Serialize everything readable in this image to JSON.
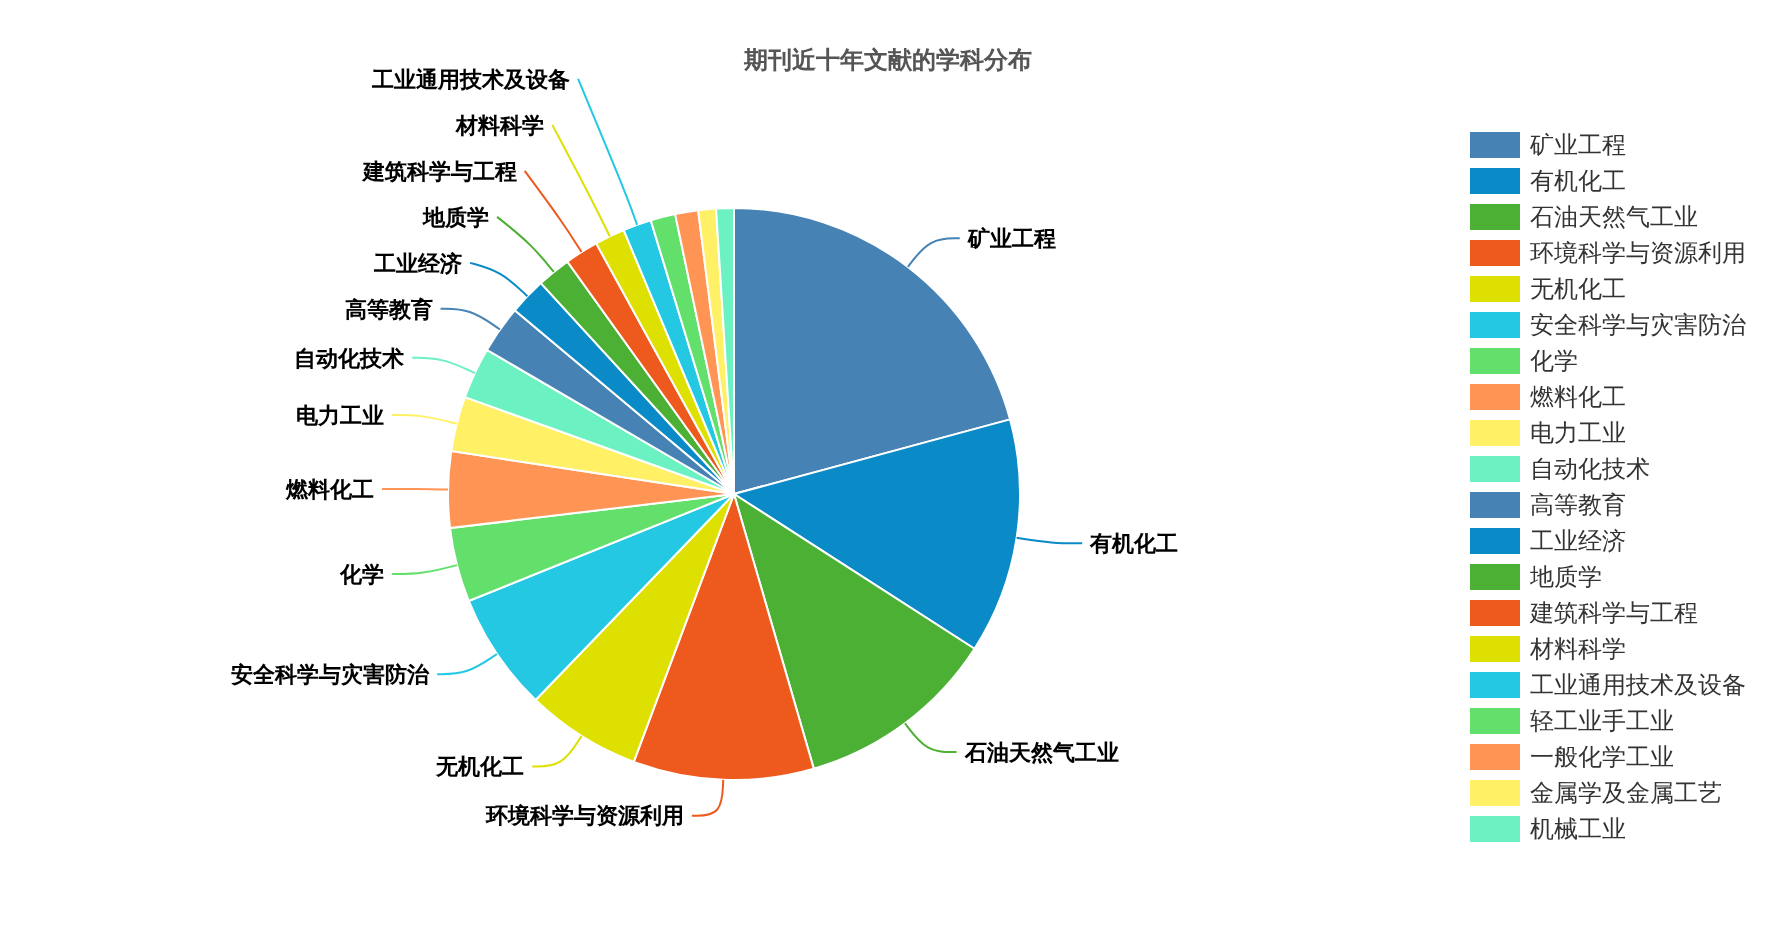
{
  "chart_data": {
    "type": "pie",
    "title": "期刊近十年文献的学科分布",
    "categories": [
      "矿业工程",
      "有机化工",
      "石油天然气工业",
      "环境科学与资源利用",
      "无机化工",
      "安全科学与灾害防治",
      "化学",
      "燃料化工",
      "电力工业",
      "自动化技术",
      "高等教育",
      "工业经济",
      "地质学",
      "建筑科学与工程",
      "材料科学",
      "工业通用技术及设备",
      "轻工业手工业",
      "一般化学工业",
      "金属学及金属工艺",
      "机械工业"
    ],
    "values": [
      20.8,
      13.3,
      11.4,
      10.2,
      6.5,
      6.7,
      4.2,
      4.3,
      3.1,
      2.9,
      2.7,
      2.1,
      1.9,
      1.9,
      1.7,
      1.6,
      1.4,
      1.3,
      1.0,
      1.0
    ],
    "colors": [
      "#4682b4",
      "#0a8ac6",
      "#4cb035",
      "#ee5a1e",
      "#dde000",
      "#25c8e3",
      "#63e06c",
      "#ff9455",
      "#fff065",
      "#6cf2c2",
      "#4682b4",
      "#0a8ac6",
      "#4cb035",
      "#ee5a1e",
      "#dde000",
      "#25c8e3",
      "#63e06c",
      "#ff9455",
      "#fff065",
      "#6cf2c2"
    ],
    "legend": "right"
  }
}
